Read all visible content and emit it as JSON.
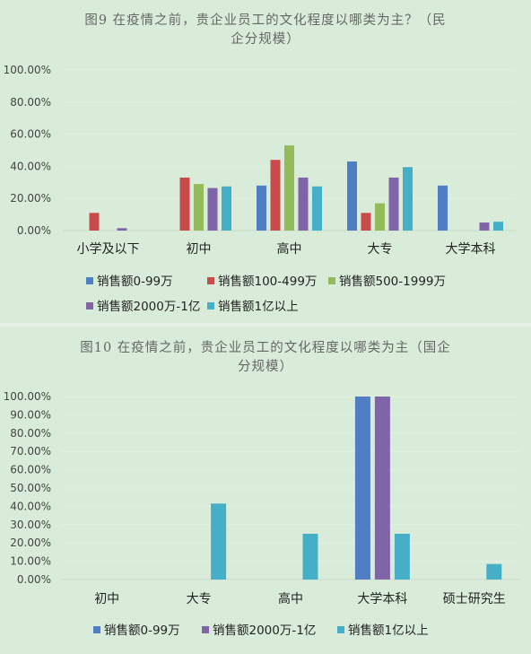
{
  "colors": {
    "blue": "#4f7ec4",
    "red": "#c94a4a",
    "green": "#94bb59",
    "purple": "#7f64a8",
    "teal": "#46afc8"
  },
  "chart_data": [
    {
      "type": "bar",
      "title": "图9 在疫情之前，贵企业员工的文化程度以哪类为主？（民企分规模）",
      "title_lines": [
        "图9 在疫情之前，贵企业员工的文化程度以哪类为主？（民",
        "企分规模）"
      ],
      "categories": [
        "小学及以下",
        "初中",
        "高中",
        "大专",
        "大学本科"
      ],
      "ylim": [
        0,
        100
      ],
      "yticks": [
        "0.00%",
        "20.00%",
        "40.00%",
        "60.00%",
        "80.00%",
        "100.00%"
      ],
      "grid": true,
      "legend_position": "bottom",
      "series": [
        {
          "name": "销售额0-99万",
          "color": "#4f7ec4",
          "values": [
            0,
            0,
            28,
            43,
            28
          ]
        },
        {
          "name": "销售额100-499万",
          "color": "#c94a4a",
          "values": [
            11,
            33,
            44,
            11,
            0
          ]
        },
        {
          "name": "销售额500-1999万",
          "color": "#94bb59",
          "values": [
            0,
            29,
            53,
            17,
            0
          ]
        },
        {
          "name": "销售额2000万-1亿",
          "color": "#7f64a8",
          "values": [
            1.5,
            26.5,
            33,
            33,
            5
          ]
        },
        {
          "name": "销售额1亿以上",
          "color": "#46afc8",
          "values": [
            0,
            27.5,
            27.5,
            39.5,
            5.5
          ]
        }
      ]
    },
    {
      "type": "bar",
      "title": "图10 在疫情之前，贵企业员工的文化程度以哪类为主（国企分规模）",
      "title_lines": [
        "图10 在疫情之前，贵企业员工的文化程度以哪类为主（国企",
        "分规模）"
      ],
      "categories": [
        "初中",
        "大专",
        "高中",
        "大学本科",
        "硕士研究生"
      ],
      "ylim": [
        0,
        100
      ],
      "yticks": [
        "0.00%",
        "10.00%",
        "20.00%",
        "30.00%",
        "40.00%",
        "50.00%",
        "60.00%",
        "70.00%",
        "80.00%",
        "90.00%",
        "100.00%"
      ],
      "grid": true,
      "legend_position": "bottom",
      "series": [
        {
          "name": "销售额0-99万",
          "color": "#4f7ec4",
          "values": [
            0,
            0,
            0,
            100,
            0
          ]
        },
        {
          "name": "销售额2000万-1亿",
          "color": "#7f64a8",
          "values": [
            0,
            0,
            0,
            100,
            0
          ]
        },
        {
          "name": "销售额1亿以上",
          "color": "#46afc8",
          "values": [
            0,
            41.5,
            25,
            25,
            8.5
          ]
        }
      ]
    }
  ]
}
